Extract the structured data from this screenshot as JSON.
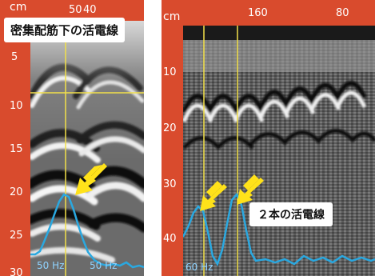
{
  "left_panel": {
    "unit": "cm",
    "top_labels": [
      "50",
      "40"
    ],
    "depth_ticks": [
      "5",
      "10",
      "15",
      "20",
      "25",
      "30"
    ],
    "caption": "密集配筋下の活電線",
    "freq_labels": [
      "50 Hz",
      "50 Hz"
    ]
  },
  "right_panel": {
    "unit": "cm",
    "top_labels": [
      "160",
      "80"
    ],
    "depth_ticks": [
      "10",
      "20",
      "30",
      "40"
    ],
    "caption": "２本の活電線",
    "freq_labels": [
      "60 Hz"
    ]
  },
  "colors": {
    "scale_bar": "#d94b2d",
    "cursor_line": "#f2e04a",
    "signal_line": "#2aa8e0",
    "arrow": "#ffe21a"
  }
}
